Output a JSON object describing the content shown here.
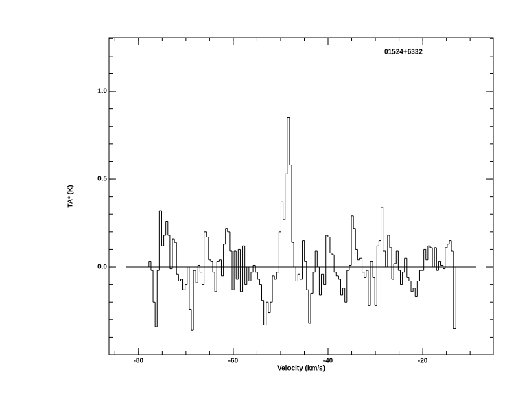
{
  "chart_data": {
    "type": "step",
    "annotation": "01524+6332",
    "x_label": "Velocity (km/s)",
    "y_label": "TA* (K)",
    "color": "#000000",
    "xlim": [
      -86.2,
      -5.1
    ],
    "ylim": [
      -0.5,
      1.305
    ],
    "xticks": [
      -80,
      -60,
      -40,
      -20
    ],
    "yticks": [
      {
        "value": 0,
        "label": "0.0"
      },
      {
        "value": 0.5,
        "label": "0.5"
      },
      {
        "value": 1,
        "label": "1.0"
      }
    ],
    "x": [
      -78.05,
      -77.6,
      -77.15,
      -76.7,
      -76.25,
      -75.8,
      -75.35,
      -74.9,
      -74.45,
      -74.0,
      -73.55,
      -73.1,
      -72.65,
      -72.2,
      -71.75,
      -71.3,
      -70.85,
      -70.4,
      -69.95,
      -69.5,
      -69.05,
      -68.6,
      -68.15,
      -67.7,
      -67.25,
      -66.8,
      -66.35,
      -65.9,
      -65.45,
      -65.0,
      -64.55,
      -64.1,
      -63.65,
      -63.2,
      -62.75,
      -62.3,
      -61.85,
      -61.4,
      -60.95,
      -60.5,
      -60.05,
      -59.6,
      -59.15,
      -58.7,
      -58.25,
      -57.8,
      -57.35,
      -56.9,
      -56.45,
      -56.0,
      -55.55,
      -55.1,
      -54.65,
      -54.2,
      -53.75,
      -53.3,
      -52.85,
      -52.4,
      -51.95,
      -51.5,
      -51.05,
      -50.6,
      -50.15,
      -49.7,
      -49.25,
      -48.8,
      -48.35,
      -47.9,
      -47.45,
      -47.0,
      -46.55,
      -46.1,
      -45.65,
      -45.2,
      -44.75,
      -44.3,
      -43.85,
      -43.4,
      -42.95,
      -42.5,
      -42.05,
      -41.6,
      -41.15,
      -40.7,
      -40.25,
      -39.8,
      -39.35,
      -38.9,
      -38.45,
      -38.0,
      -37.55,
      -37.1,
      -36.65,
      -36.2,
      -35.75,
      -35.3,
      -34.85,
      -34.4,
      -33.95,
      -33.5,
      -33.05,
      -32.6,
      -32.15,
      -31.7,
      -31.25,
      -30.8,
      -30.35,
      -29.9,
      -29.45,
      -29.0,
      -28.55,
      -28.1,
      -27.65,
      -27.2,
      -26.75,
      -26.3,
      -25.85,
      -25.4,
      -24.95,
      -24.5,
      -24.05,
      -23.6,
      -23.15,
      -22.7,
      -22.25,
      -21.8,
      -21.35,
      -20.9,
      -20.45,
      -20.0,
      -19.55,
      -19.1,
      -18.65,
      -18.2,
      -17.75,
      -17.3,
      -16.85,
      -16.4,
      -15.95,
      -15.5,
      -15.05,
      -14.6,
      -14.15,
      -13.7,
      -13.25
    ],
    "values": [
      0.0,
      0.03,
      -0.02,
      -0.2,
      -0.34,
      -0.02,
      0.32,
      0.12,
      0.18,
      0.26,
      0.18,
      -0.01,
      0.16,
      0.14,
      -0.04,
      -0.08,
      -0.07,
      -0.13,
      -0.1,
      0.0,
      -0.24,
      -0.36,
      -0.02,
      -0.09,
      0.01,
      -0.03,
      -0.1,
      0.2,
      0.17,
      0.04,
      0.03,
      -0.03,
      -0.14,
      0.03,
      0.04,
      -0.05,
      0.13,
      0.22,
      0.2,
      0.09,
      -0.13,
      0.09,
      -0.07,
      0.1,
      -0.14,
      0.12,
      -0.1,
      0.0,
      -0.08,
      -0.03,
      0.01,
      -0.03,
      -0.07,
      -0.1,
      -0.19,
      -0.33,
      -0.2,
      -0.26,
      -0.2,
      -0.05,
      -0.07,
      -0.03,
      0.2,
      0.37,
      0.27,
      0.53,
      0.85,
      0.58,
      0.14,
      0.0,
      -0.08,
      -0.04,
      -0.07,
      0.15,
      0.03,
      -0.13,
      -0.32,
      -0.15,
      -0.03,
      0.09,
      0.0,
      -0.16,
      -0.04,
      -0.1,
      0.18,
      0.17,
      0.08,
      0.07,
      -0.03,
      -0.05,
      -0.07,
      -0.16,
      -0.12,
      -0.2,
      -0.02,
      0.01,
      0.29,
      0.22,
      0.1,
      0.04,
      0.05,
      -0.03,
      -0.06,
      -0.02,
      -0.22,
      0.03,
      -0.06,
      -0.22,
      0.12,
      0.15,
      0.34,
      0.09,
      0.0,
      0.18,
      0.11,
      -0.07,
      0.02,
      0.09,
      -0.02,
      -0.1,
      -0.03,
      0.05,
      -0.06,
      -0.08,
      -0.14,
      -0.12,
      -0.17,
      -0.08,
      -0.02,
      -0.02,
      0.1,
      0.04,
      0.12,
      0.11,
      0.0,
      0.11,
      -0.02,
      0.03,
      0.01,
      -0.01,
      0.11,
      0.13,
      0.15,
      0.09,
      -0.35
    ]
  }
}
